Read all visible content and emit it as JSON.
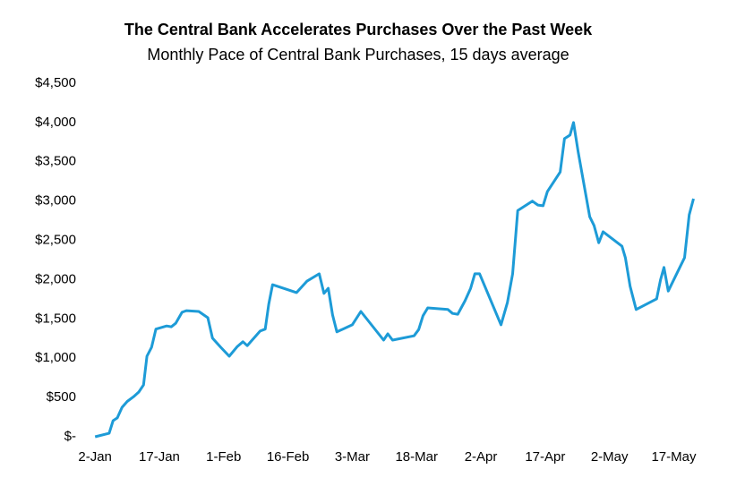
{
  "chart_data": {
    "type": "line",
    "title": "The Central Bank Accelerates Purchases Over the Past Week",
    "subtitle": "Monthly Pace of Central Bank Purchases, 15 days average",
    "x": [
      0,
      3.3,
      4.2,
      5.2,
      6.3,
      7.5,
      9,
      10.2,
      11.3,
      12.1,
      13.2,
      14.2,
      16.7,
      17.8,
      18.8,
      20.3,
      21.3,
      24.2,
      26.3,
      27.4,
      29.3,
      31.3,
      33.2,
      34.5,
      35.5,
      38.5,
      39.7,
      40.5,
      41.4,
      47,
      49.4,
      52.3,
      53.4,
      54.4,
      55.4,
      56.4,
      60,
      62,
      67.3,
      68.3,
      69.4,
      74.4,
      75.5,
      76.5,
      77.6,
      82.3,
      83.4,
      84.6,
      86.3,
      87.6,
      88.6,
      89.7,
      94.7,
      96.2,
      97.4,
      98.6,
      102,
      103.3,
      104.5,
      105.5,
      108.5,
      109.5,
      110.8,
      111.6,
      112.7,
      115.4,
      116.4,
      117.5,
      118.5,
      122.9,
      123.7,
      124.8,
      126.2,
      131,
      131.9,
      132.7,
      133.7,
      137.5,
      138.6,
      139.6
    ],
    "values": [
      0,
      45,
      205,
      240,
      375,
      450,
      510,
      570,
      660,
      1025,
      1140,
      1370,
      1410,
      1400,
      1445,
      1585,
      1605,
      1595,
      1515,
      1255,
      1140,
      1025,
      1150,
      1210,
      1160,
      1345,
      1370,
      1685,
      1935,
      1835,
      1980,
      2075,
      1825,
      1890,
      1550,
      1335,
      1425,
      1595,
      1230,
      1310,
      1230,
      1285,
      1365,
      1540,
      1640,
      1620,
      1570,
      1560,
      1730,
      1890,
      2075,
      2075,
      1425,
      1710,
      2075,
      2880,
      3000,
      2950,
      2940,
      3120,
      3370,
      3795,
      3840,
      4000,
      3625,
      2800,
      2690,
      2470,
      2610,
      2425,
      2280,
      1915,
      1620,
      1755,
      1995,
      2155,
      1855,
      2280,
      2825,
      3030
    ],
    "color": "#1d9bd7",
    "xlim": [
      -4,
      142
    ],
    "xticks": [
      {
        "value": 0,
        "label": "2-Jan"
      },
      {
        "value": 15,
        "label": "17-Jan"
      },
      {
        "value": 30,
        "label": "1-Feb"
      },
      {
        "value": 45,
        "label": "16-Feb"
      },
      {
        "value": 60,
        "label": "3-Mar"
      },
      {
        "value": 75,
        "label": "18-Mar"
      },
      {
        "value": 90,
        "label": "2-Apr"
      },
      {
        "value": 105,
        "label": "17-Apr"
      },
      {
        "value": 120,
        "label": "2-May"
      },
      {
        "value": 135,
        "label": "17-May"
      }
    ],
    "ylim": [
      0,
      4500
    ],
    "yticks": [
      {
        "value": 0,
        "label": "$-"
      },
      {
        "value": 500,
        "label": "$500"
      },
      {
        "value": 1000,
        "label": "$1,000"
      },
      {
        "value": 1500,
        "label": "$1,500"
      },
      {
        "value": 2000,
        "label": "$2,000"
      },
      {
        "value": 2500,
        "label": "$2,500"
      },
      {
        "value": 3000,
        "label": "$3,000"
      },
      {
        "value": 3500,
        "label": "$3,500"
      },
      {
        "value": 4000,
        "label": "$4,000"
      },
      {
        "value": 4500,
        "label": "$4,500"
      }
    ]
  }
}
